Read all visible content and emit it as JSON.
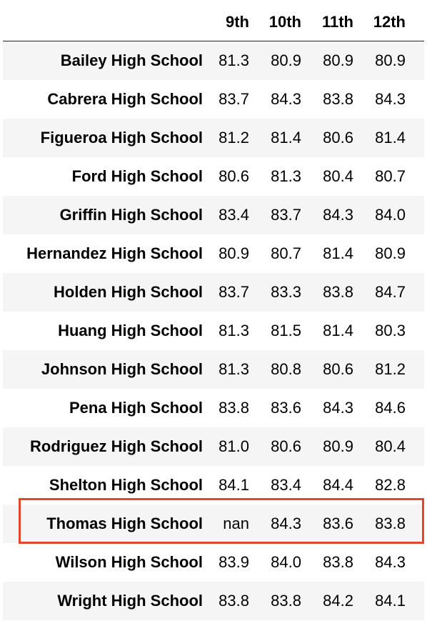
{
  "table": {
    "columns": [
      "9th",
      "10th",
      "11th",
      "12th"
    ],
    "rows": [
      {
        "label": "Bailey High School",
        "values": [
          "81.3",
          "80.9",
          "80.9",
          "80.9"
        ]
      },
      {
        "label": "Cabrera High School",
        "values": [
          "83.7",
          "84.3",
          "83.8",
          "84.3"
        ]
      },
      {
        "label": "Figueroa High School",
        "values": [
          "81.2",
          "81.4",
          "80.6",
          "81.4"
        ]
      },
      {
        "label": "Ford High School",
        "values": [
          "80.6",
          "81.3",
          "80.4",
          "80.7"
        ]
      },
      {
        "label": "Griffin High School",
        "values": [
          "83.4",
          "83.7",
          "84.3",
          "84.0"
        ]
      },
      {
        "label": "Hernandez High School",
        "values": [
          "80.9",
          "80.7",
          "81.4",
          "80.9"
        ]
      },
      {
        "label": "Holden High School",
        "values": [
          "83.7",
          "83.3",
          "83.8",
          "84.7"
        ]
      },
      {
        "label": "Huang High School",
        "values": [
          "81.3",
          "81.5",
          "81.4",
          "80.3"
        ]
      },
      {
        "label": "Johnson High School",
        "values": [
          "81.3",
          "80.8",
          "80.6",
          "81.2"
        ]
      },
      {
        "label": "Pena High School",
        "values": [
          "83.8",
          "83.6",
          "84.3",
          "84.6"
        ]
      },
      {
        "label": "Rodriguez High School",
        "values": [
          "81.0",
          "80.6",
          "80.9",
          "80.4"
        ]
      },
      {
        "label": "Shelton High School",
        "values": [
          "84.1",
          "83.4",
          "84.4",
          "82.8"
        ]
      },
      {
        "label": "Thomas High School",
        "values": [
          "nan",
          "84.3",
          "83.6",
          "83.8"
        ]
      },
      {
        "label": "Wilson High School",
        "values": [
          "83.9",
          "84.0",
          "83.8",
          "84.3"
        ]
      },
      {
        "label": "Wright High School",
        "values": [
          "83.8",
          "83.8",
          "84.2",
          "84.1"
        ]
      }
    ]
  },
  "highlight": {
    "row_label": "Thomas High School",
    "color": "#e4452e"
  },
  "colors": {
    "stripe": "#f5f5f5",
    "header_rule": "#222222"
  }
}
